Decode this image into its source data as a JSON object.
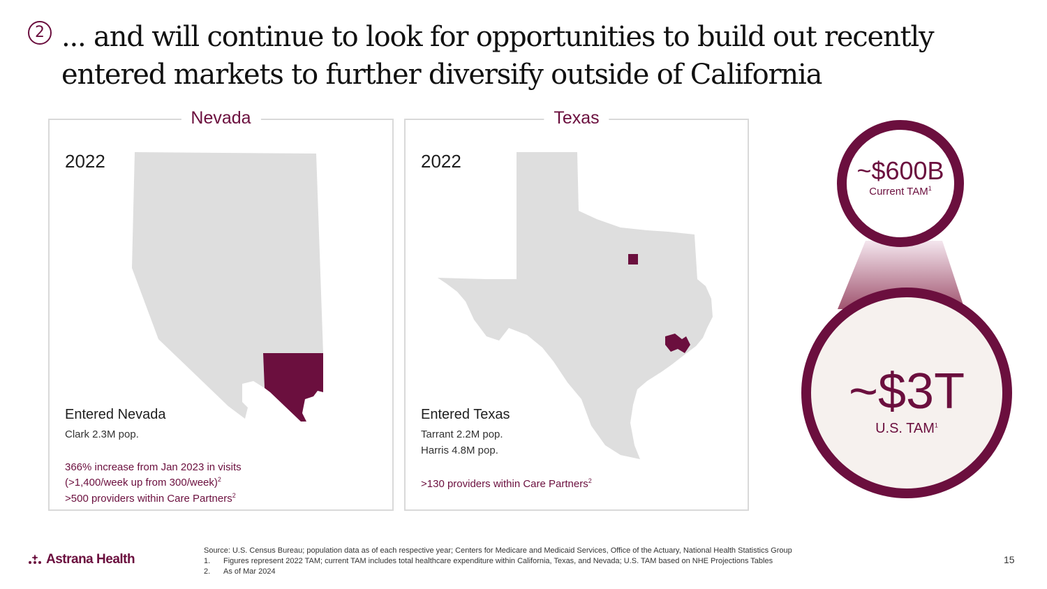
{
  "header": {
    "step": "2",
    "title_line1": "... and will continue to look for opportunities to build out recently",
    "title_line2": "entered markets to further diversify outside of California"
  },
  "nevada": {
    "heading": "Nevada",
    "year": "2022",
    "entered": "Entered Nevada",
    "county_pop": "Clark 2.3M pop.",
    "stat1_line1": "366% increase from Jan 2023 in visits",
    "stat1_line2": "(>1,400/week up from 300/week)",
    "stat1_sup": "2",
    "stat2": ">500 providers within Care Partners",
    "stat2_sup": "2"
  },
  "texas": {
    "heading": "Texas",
    "year": "2022",
    "entered": "Entered Texas",
    "county_pop1": "Tarrant 2.2M pop.",
    "county_pop2": "Harris 4.8M pop.",
    "stat1": ">130 providers within Care Partners",
    "stat1_sup": "2"
  },
  "tam": {
    "current_value": "~$600B",
    "current_label": "Current TAM",
    "current_sup": "1",
    "us_value": "~$3T",
    "us_label": "U.S. TAM",
    "us_sup": "1"
  },
  "footer": {
    "logo_text": "Astrana Health",
    "source": "Source: U.S. Census Bureau; population data as of each respective year; Centers for Medicare and Medicaid Services, Office of the Actuary, National Health Statistics Group",
    "note1_num": "1.",
    "note1": "Figures represent 2022 TAM; current TAM includes total healthcare expenditure within California, Texas, and Nevada; U.S. TAM based on NHE Projections Tables",
    "note2_num": "2.",
    "note2": "As of Mar 2024",
    "page_number": "15"
  },
  "colors": {
    "accent": "#6b0f3e",
    "map_gray": "#dedede",
    "border_gray": "#d9d9d9"
  },
  "icons": {
    "step": "circled-number-icon",
    "logo": "astrana-logo-icon"
  }
}
